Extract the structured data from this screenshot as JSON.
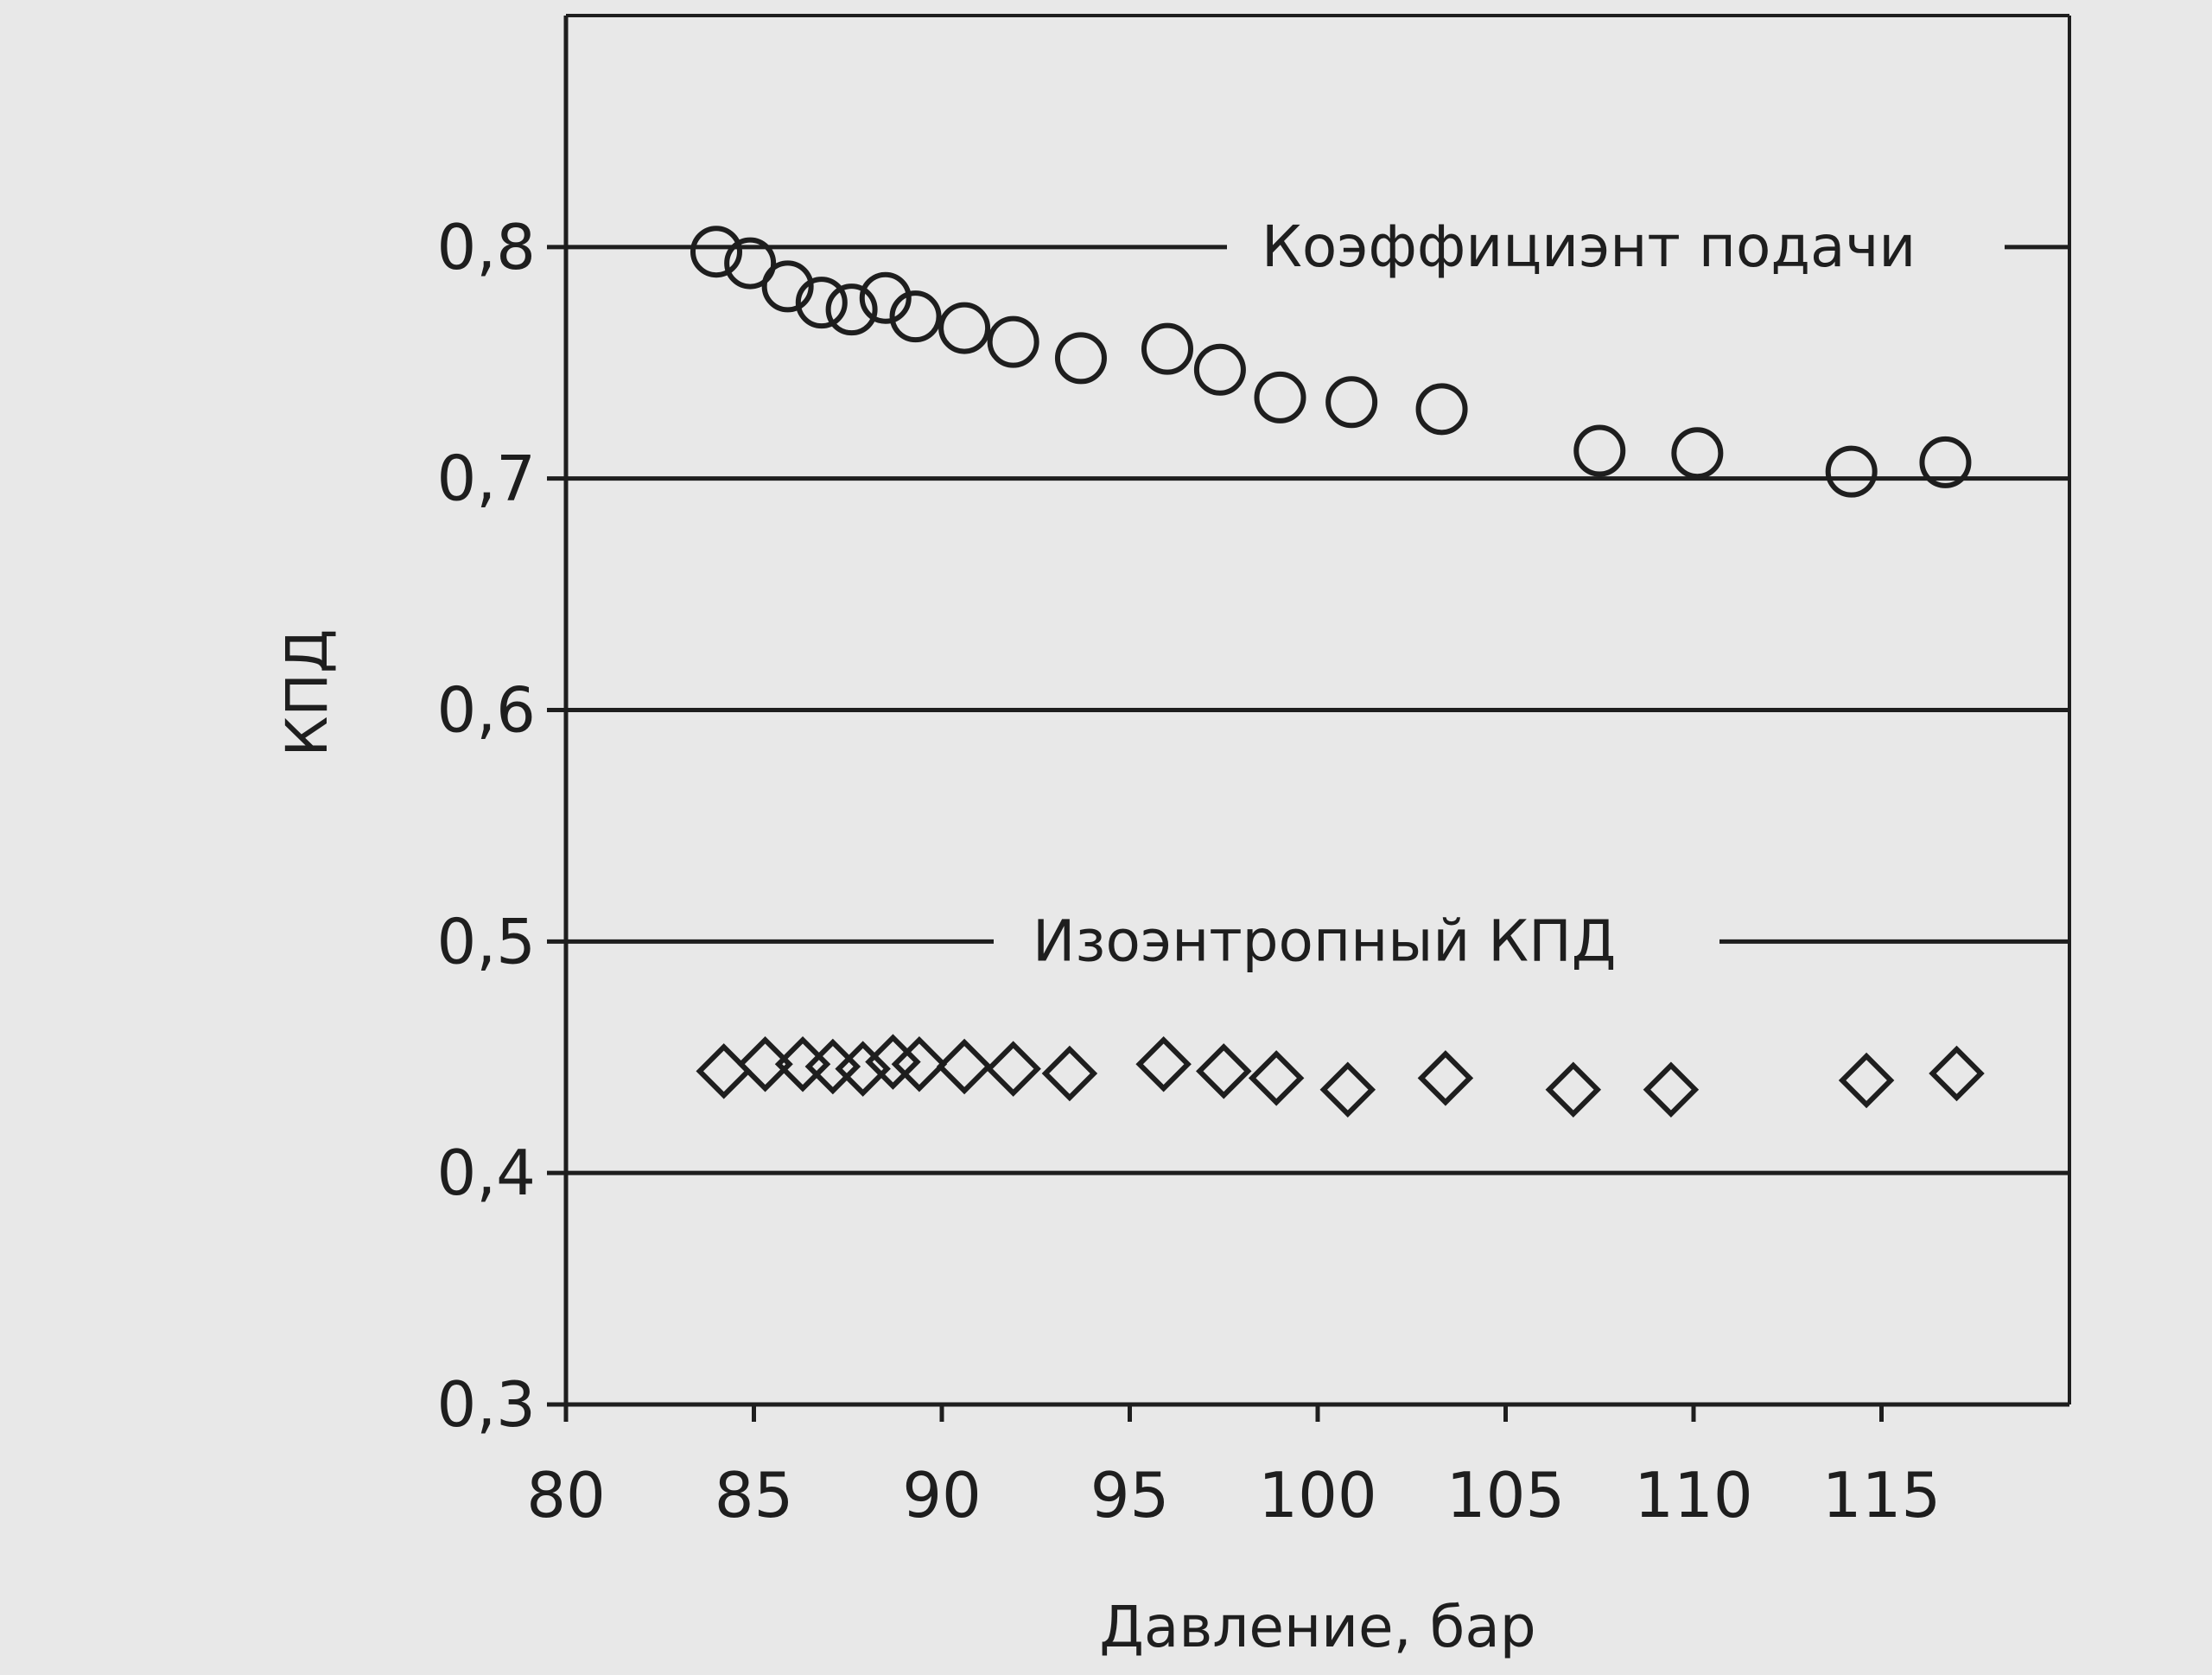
{
  "chart_data": {
    "type": "scatter",
    "title": "",
    "xlabel": "Давление, бар",
    "ylabel": "КПД",
    "xlim": [
      80,
      120
    ],
    "ylim": [
      0.3,
      0.9
    ],
    "x_ticks": [
      80,
      85,
      90,
      95,
      100,
      105,
      110,
      115
    ],
    "y_ticks": [
      "0,3",
      "0,4",
      "0,5",
      "0,6",
      "0,7",
      "0,8"
    ],
    "y_tick_values": [
      0.3,
      0.4,
      0.5,
      0.6,
      0.7,
      0.8
    ],
    "grid": "horizontal",
    "legend": "inline labels on gridlines",
    "colors": {
      "background": "#e8e8e8",
      "ink": "#1e1e1e"
    },
    "series": [
      {
        "name": "Коэффициэнт подачи",
        "marker": "circle",
        "points": [
          [
            84.0,
            0.798
          ],
          [
            84.9,
            0.793
          ],
          [
            85.9,
            0.783
          ],
          [
            86.8,
            0.776
          ],
          [
            87.6,
            0.773
          ],
          [
            88.5,
            0.778
          ],
          [
            89.3,
            0.77
          ],
          [
            90.6,
            0.765
          ],
          [
            91.9,
            0.759
          ],
          [
            93.7,
            0.752
          ],
          [
            96.0,
            0.756
          ],
          [
            97.4,
            0.747
          ],
          [
            99.0,
            0.735
          ],
          [
            100.9,
            0.733
          ],
          [
            103.3,
            0.73
          ],
          [
            107.5,
            0.712
          ],
          [
            110.1,
            0.711
          ],
          [
            114.2,
            0.703
          ],
          [
            116.7,
            0.707
          ]
        ]
      },
      {
        "name": "Изоэнтропный КПД",
        "marker": "diamond",
        "points": [
          [
            84.2,
            0.444
          ],
          [
            85.3,
            0.447
          ],
          [
            86.3,
            0.447
          ],
          [
            87.1,
            0.446
          ],
          [
            87.9,
            0.445
          ],
          [
            88.7,
            0.448
          ],
          [
            89.4,
            0.447
          ],
          [
            90.6,
            0.446
          ],
          [
            91.9,
            0.445
          ],
          [
            93.4,
            0.443
          ],
          [
            95.9,
            0.447
          ],
          [
            97.5,
            0.444
          ],
          [
            98.9,
            0.441
          ],
          [
            100.8,
            0.436
          ],
          [
            103.4,
            0.441
          ],
          [
            106.8,
            0.436
          ],
          [
            109.4,
            0.436
          ],
          [
            114.6,
            0.44
          ],
          [
            117.0,
            0.443
          ]
        ]
      }
    ]
  }
}
